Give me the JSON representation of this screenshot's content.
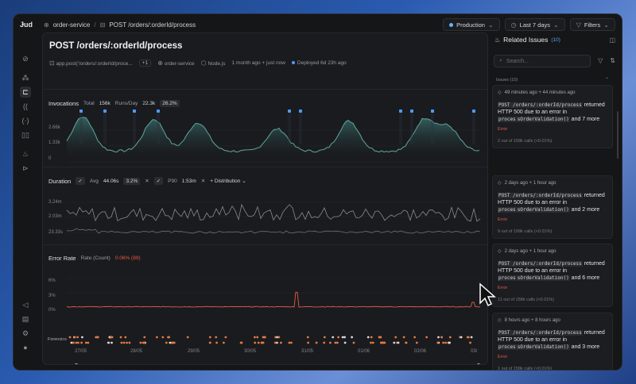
{
  "app": {
    "logo": "Ɉud"
  },
  "breadcrumb": {
    "service": "order-service",
    "route": "POST /orders/:orderId/process"
  },
  "topbar": {
    "environment": "Production",
    "time_range": "Last 7 days",
    "filters": "Filters"
  },
  "page": {
    "title": "POST /orders/:orderId/process",
    "meta": {
      "file": "app.post('/orders/:orderId/proce...",
      "file_badge": "+1",
      "service": "order-service",
      "runtime": "Node.js",
      "age": "1 month ago + just now",
      "deployed": "Deployed 6d 23h ago"
    }
  },
  "invocations": {
    "label": "Invocations",
    "total_label": "Total",
    "total_value": "156k",
    "runs_label": "Runs/Day",
    "runs_value": "22.3k",
    "runs_pct": "26.2%",
    "yticks": [
      "2.66k",
      "1.33k",
      "0"
    ]
  },
  "duration": {
    "label": "Duration",
    "avg_label": "Avg",
    "avg_value": "44.06s",
    "avg_pct": "3.2%",
    "p90_label": "P90",
    "p90_value": "1:53m",
    "distribution": "Distribution",
    "yticks": [
      "3.24m",
      "2.03m",
      "23.33s"
    ]
  },
  "error_rate": {
    "label": "Error Rate",
    "rate_label": "Rate (Count)",
    "rate_value": "0.06% (89)",
    "yticks": [
      "6%",
      "3%",
      "0%"
    ],
    "forensics": "Forensics",
    "xticks": [
      "27/05",
      "28/05",
      "29/05",
      "30/05",
      "31/05",
      "01/06",
      "02/06",
      "03/"
    ]
  },
  "related": {
    "title": "Related Issues",
    "count": "(10)",
    "search_placeholder": "Search...",
    "issues_header": "Issues (10)",
    "cards": [
      {
        "time": "49 minutes ago + 44 minutes ago",
        "code1": "POST /orders/:orderId/process",
        "text1": "returned HTTP 500 due to an error in",
        "code2": "proces",
        "code3": "sOrderValidation()",
        "text2": "and 7 more",
        "status": "Error",
        "calls": "2 out of 158k calls (<0.01%)"
      },
      {
        "time": "2 days ago + 1 hour ago",
        "code1": "POST /orders/:orderId/process",
        "text1": "returned HTTP 500 due to an error in",
        "code2": "proces",
        "code3": "sOrderValidation()",
        "text2": "and 2 more",
        "status": "Error",
        "calls": "9 out of 158k calls (<0.01%)"
      },
      {
        "time": "2 days ago + 1 hour ago",
        "code1": "POST /orders/:orderId/process",
        "text1": "returned HTTP 500 due to an error in",
        "code2": "proces",
        "code3": "sOrderValidation()",
        "text2": "and 6 more",
        "status": "Error",
        "calls": "11 out of 158k calls (<0.01%)"
      },
      {
        "time": "8 hours ago + 8 hours ago",
        "code1": "POST /orders/:orderId/process",
        "text1": "returned HTTP 500 due to an error in",
        "code2": "proces",
        "code3": "sOrderValidation()",
        "text2": "and 3 more",
        "status": "Error",
        "calls": "1 out of 158k calls (<0.01%)"
      }
    ]
  },
  "colors": {
    "accent": "#4f9cff",
    "error": "#e5594a",
    "invocations_line": "#5fa6a0"
  }
}
